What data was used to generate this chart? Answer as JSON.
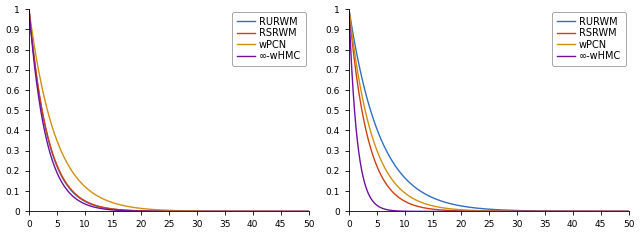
{
  "xlim": [
    0,
    50
  ],
  "ylim": [
    0,
    1
  ],
  "xticks": [
    0,
    5,
    10,
    15,
    20,
    25,
    30,
    35,
    40,
    45,
    50
  ],
  "yticks": [
    0,
    0.1,
    0.2,
    0.3,
    0.4,
    0.5,
    0.6,
    0.7,
    0.8,
    0.9,
    1
  ],
  "legend_labels": [
    "RURWM",
    "RSRWM",
    "wPCN",
    "∞-wHMC"
  ],
  "colors": {
    "RURWM": "#3070c0",
    "RSRWM": "#d04010",
    "wPCN": "#d09010",
    "inf_wHMC": "#7010a0"
  },
  "left_params": {
    "RURWM": {
      "b": 0.3
    },
    "RSRWM": {
      "b": 0.295
    },
    "wPCN": {
      "b": 0.21
    },
    "inf_wHMC": {
      "b": 0.33
    }
  },
  "right_params": {
    "RURWM": {
      "b": 0.18
    },
    "RSRWM": {
      "b": 0.3
    },
    "wPCN": {
      "b": 0.24
    },
    "inf_wHMC": {
      "b": 0.7
    }
  },
  "background_color": "#ffffff",
  "tick_fontsize": 6.5,
  "legend_fontsize": 7,
  "linewidth": 1.0
}
